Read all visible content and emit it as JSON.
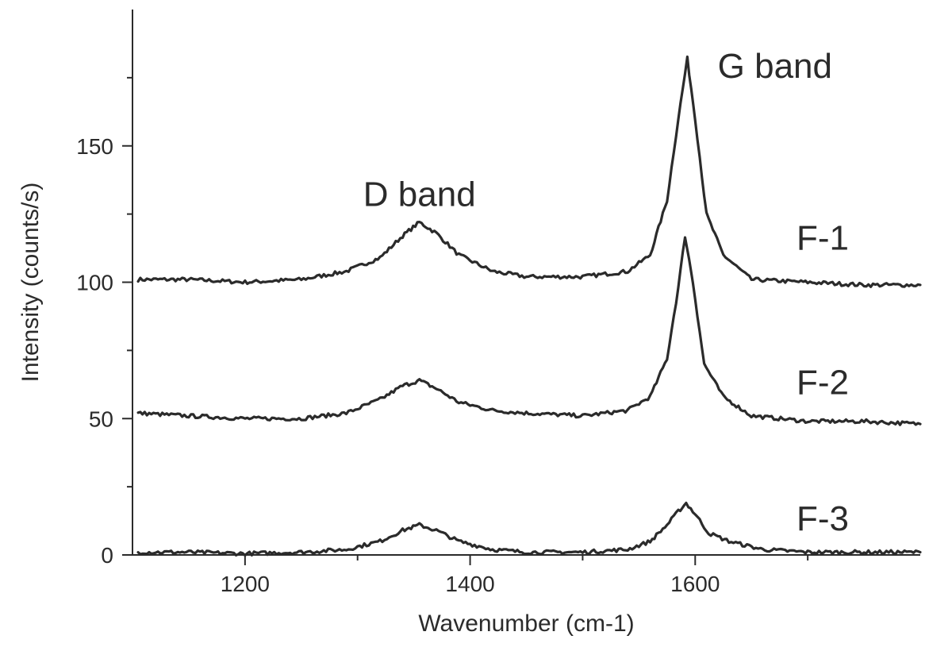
{
  "chart_data": {
    "type": "line",
    "xlabel": "Wavenumber (cm-1)",
    "ylabel": "Intensity (counts/s)",
    "xlim": [
      1100,
      1800
    ],
    "ylim": [
      0,
      200
    ],
    "x_ticks_major": [
      1200,
      1400,
      1600
    ],
    "x_ticks_minor": [
      1300,
      1500,
      1700
    ],
    "y_ticks_major": [
      0,
      50,
      100,
      150
    ],
    "y_ticks_minor": [
      25,
      75,
      125,
      175
    ],
    "grid": false,
    "annotations": [
      {
        "text": "D band",
        "x": 1355,
        "y": 128
      },
      {
        "text": "G band",
        "x": 1620,
        "y": 175
      }
    ],
    "series": [
      {
        "name": "F-1",
        "label_x": 1690,
        "label_y": 112,
        "x": [
          1105,
          1150,
          1200,
          1250,
          1290,
          1320,
          1340,
          1355,
          1370,
          1390,
          1420,
          1450,
          1500,
          1540,
          1560,
          1575,
          1585,
          1593,
          1600,
          1610,
          1625,
          1650,
          1700,
          1750,
          1800
        ],
        "y": [
          101,
          101,
          100,
          101,
          104,
          109,
          117,
          122,
          118,
          110,
          104,
          102,
          102,
          104,
          110,
          130,
          160,
          182,
          160,
          125,
          110,
          101,
          100,
          99,
          99
        ]
      },
      {
        "name": "F-2",
        "label_x": 1690,
        "label_y": 59,
        "x": [
          1105,
          1150,
          1200,
          1250,
          1290,
          1320,
          1340,
          1355,
          1370,
          1390,
          1420,
          1450,
          1500,
          1540,
          1560,
          1575,
          1585,
          1591,
          1598,
          1608,
          1625,
          1650,
          1700,
          1750,
          1800
        ],
        "y": [
          52,
          51,
          50,
          50,
          52,
          57,
          62,
          64,
          61,
          56,
          53,
          52,
          51,
          53,
          58,
          72,
          98,
          117,
          100,
          70,
          58,
          51,
          49,
          49,
          48
        ]
      },
      {
        "name": "F-3",
        "label_x": 1690,
        "label_y": 9,
        "x": [
          1105,
          1150,
          1200,
          1250,
          1290,
          1320,
          1340,
          1355,
          1370,
          1390,
          1420,
          1450,
          1500,
          1540,
          1560,
          1575,
          1585,
          1592,
          1600,
          1612,
          1630,
          1660,
          1700,
          1750,
          1800
        ],
        "y": [
          1,
          1,
          0.5,
          1,
          2,
          5,
          9,
          11,
          9,
          5,
          2,
          1,
          1,
          2,
          5,
          11,
          16,
          19,
          15,
          8,
          5,
          2,
          1,
          1,
          1
        ]
      }
    ]
  }
}
